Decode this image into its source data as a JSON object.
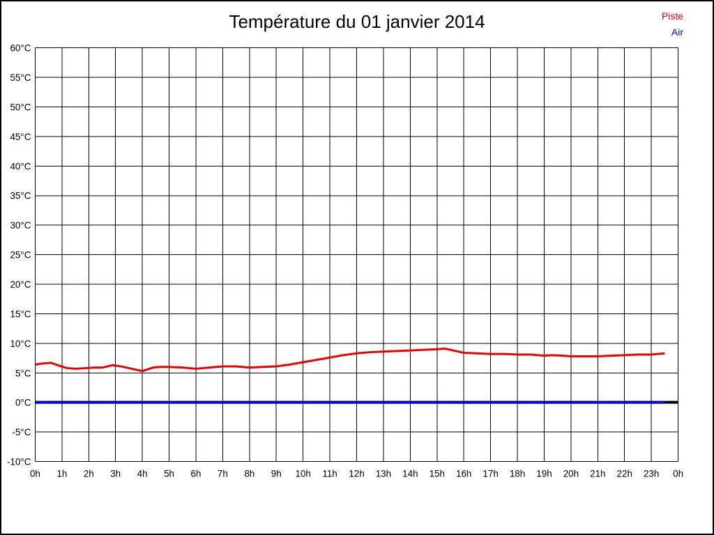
{
  "page": {
    "title": "Température du 01 janvier 2014"
  },
  "legend": {
    "items": [
      {
        "label": "Piste",
        "color": "#ee0000"
      },
      {
        "label": "Air",
        "color": "#0000dd"
      }
    ]
  },
  "chart_data": {
    "type": "line",
    "title": "Température du 01 janvier 2014",
    "xlabel": "",
    "ylabel": "",
    "xlim": [
      0,
      24
    ],
    "ylim": [
      -10,
      60
    ],
    "grid": true,
    "legend_position": "top-right",
    "x_ticks": {
      "values": [
        0,
        1,
        2,
        3,
        4,
        5,
        6,
        7,
        8,
        9,
        10,
        11,
        12,
        13,
        14,
        15,
        16,
        17,
        18,
        19,
        20,
        21,
        22,
        23,
        24
      ],
      "labels": [
        "0h",
        "1h",
        "2h",
        "3h",
        "4h",
        "5h",
        "6h",
        "7h",
        "8h",
        "9h",
        "10h",
        "11h",
        "12h",
        "13h",
        "14h",
        "15h",
        "16h",
        "17h",
        "18h",
        "19h",
        "20h",
        "21h",
        "22h",
        "23h",
        "0h"
      ]
    },
    "y_ticks": {
      "values": [
        60,
        55,
        50,
        45,
        40,
        35,
        30,
        25,
        20,
        15,
        10,
        5,
        0,
        -5,
        -10
      ],
      "labels": [
        "60°C",
        "55°C",
        "50°C",
        "45°C",
        "40°C",
        "35°C",
        "30°C",
        "25°C",
        "20°C",
        "15°C",
        "10°C",
        "5°C",
        "0°C",
        "-5°C",
        "-10°C"
      ]
    },
    "zero_axis": {
      "y": 0,
      "color": "#000000",
      "width": 4
    },
    "grid_color": "#000000",
    "series": [
      {
        "name": "Piste",
        "color": "#ee0000",
        "width": 3,
        "points": [
          [
            0,
            6.4
          ],
          [
            0.3,
            6.6
          ],
          [
            0.6,
            6.7
          ],
          [
            0.9,
            6.2
          ],
          [
            1.2,
            5.8
          ],
          [
            1.5,
            5.7
          ],
          [
            1.9,
            5.8
          ],
          [
            2.2,
            5.9
          ],
          [
            2.5,
            5.9
          ],
          [
            2.9,
            6.3
          ],
          [
            3.2,
            6.1
          ],
          [
            3.6,
            5.7
          ],
          [
            4.0,
            5.3
          ],
          [
            4.4,
            5.9
          ],
          [
            4.7,
            6.0
          ],
          [
            5.0,
            6.0
          ],
          [
            5.5,
            5.9
          ],
          [
            6.0,
            5.7
          ],
          [
            6.5,
            5.9
          ],
          [
            7.0,
            6.1
          ],
          [
            7.5,
            6.1
          ],
          [
            8.0,
            5.9
          ],
          [
            8.5,
            6.0
          ],
          [
            9.0,
            6.1
          ],
          [
            9.5,
            6.4
          ],
          [
            10.0,
            6.8
          ],
          [
            10.5,
            7.2
          ],
          [
            11.0,
            7.6
          ],
          [
            11.5,
            8.0
          ],
          [
            12.0,
            8.3
          ],
          [
            12.5,
            8.5
          ],
          [
            13.0,
            8.6
          ],
          [
            13.5,
            8.7
          ],
          [
            14.0,
            8.8
          ],
          [
            14.5,
            8.9
          ],
          [
            15.0,
            9.0
          ],
          [
            15.3,
            9.1
          ],
          [
            15.6,
            8.8
          ],
          [
            16.0,
            8.4
          ],
          [
            16.5,
            8.3
          ],
          [
            17.0,
            8.2
          ],
          [
            17.5,
            8.2
          ],
          [
            18.0,
            8.1
          ],
          [
            18.5,
            8.1
          ],
          [
            19.0,
            7.9
          ],
          [
            19.3,
            8.0
          ],
          [
            19.7,
            7.9
          ],
          [
            20.0,
            7.8
          ],
          [
            20.5,
            7.8
          ],
          [
            21.0,
            7.8
          ],
          [
            21.5,
            7.9
          ],
          [
            22.0,
            8.0
          ],
          [
            22.5,
            8.1
          ],
          [
            23.0,
            8.1
          ],
          [
            23.5,
            8.3
          ]
        ]
      },
      {
        "name": "Air",
        "color": "#0000dd",
        "width": 4,
        "points": [
          [
            0,
            0
          ],
          [
            23.5,
            0
          ]
        ]
      }
    ]
  }
}
